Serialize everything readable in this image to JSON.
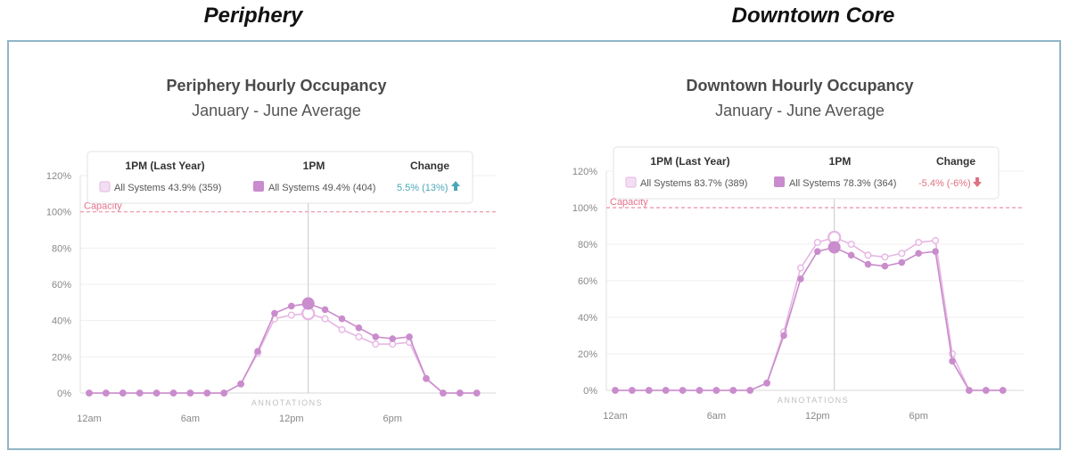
{
  "headings": {
    "left": "Periphery",
    "right": "Downtown Core"
  },
  "chart_data": [
    {
      "type": "line",
      "title": "Periphery Hourly Occupancy",
      "subtitle": "January - June Average",
      "ylim": [
        0,
        120
      ],
      "yticks": [
        "0%",
        "20%",
        "40%",
        "60%",
        "80%",
        "100%",
        "120%"
      ],
      "xticks": [
        "12am",
        "6am",
        "12pm",
        "6pm"
      ],
      "capacity_label": "Capacity",
      "capacity_value": 100,
      "annotations_label": "ANNOTATIONS",
      "tooltip": {
        "headers": [
          "1PM (Last Year)",
          "1PM",
          "Change"
        ],
        "last_year": {
          "label": "All Systems",
          "pct": "43.9%",
          "count": "(359)"
        },
        "current": {
          "label": "All Systems",
          "pct": "49.4%",
          "count": "(404)"
        },
        "change": "5.5% (13%)",
        "change_color": "#4aa8b8",
        "change_dir": "up"
      },
      "highlight_hour": 13,
      "series": [
        {
          "name": "All Systems",
          "style": "filled",
          "color": "#c98ccc",
          "values": [
            0,
            0,
            0,
            0,
            0,
            0,
            0,
            0,
            0,
            5,
            23,
            44,
            48,
            49.4,
            46,
            41,
            36,
            31,
            30,
            31,
            8,
            0,
            0,
            0
          ]
        },
        {
          "name": "All Systems (Last Year)",
          "style": "hollow",
          "color": "#e7b6e4",
          "values": [
            0,
            0,
            0,
            0,
            0,
            0,
            0,
            0,
            0,
            5,
            22,
            41,
            43,
            43.9,
            41,
            35,
            31,
            27,
            27,
            28,
            8,
            0,
            0,
            0
          ]
        }
      ]
    },
    {
      "type": "line",
      "title": "Downtown Hourly Occupancy",
      "subtitle": "January - June Average",
      "ylim": [
        0,
        120
      ],
      "yticks": [
        "0%",
        "20%",
        "40%",
        "60%",
        "80%",
        "100%",
        "120%"
      ],
      "xticks": [
        "12am",
        "6am",
        "12pm",
        "6pm"
      ],
      "capacity_label": "Capacity",
      "capacity_value": 100,
      "annotations_label": "ANNOTATIONS",
      "tooltip": {
        "headers": [
          "1PM (Last Year)",
          "1PM",
          "Change"
        ],
        "last_year": {
          "label": "All Systems",
          "pct": "83.7%",
          "count": "(389)"
        },
        "current": {
          "label": "All Systems",
          "pct": "78.3%",
          "count": "(364)"
        },
        "change": "-5.4% (-6%)",
        "change_color": "#e07080",
        "change_dir": "down"
      },
      "highlight_hour": 13,
      "series": [
        {
          "name": "All Systems",
          "style": "filled",
          "color": "#c98ccc",
          "values": [
            0,
            0,
            0,
            0,
            0,
            0,
            0,
            0,
            0,
            4,
            30,
            61,
            76,
            78.3,
            74,
            69,
            68,
            70,
            75,
            76,
            16,
            0,
            0,
            0
          ]
        },
        {
          "name": "All Systems (Last Year)",
          "style": "hollow",
          "color": "#e7b6e4",
          "values": [
            0,
            0,
            0,
            0,
            0,
            0,
            0,
            0,
            0,
            4,
            32,
            67,
            81,
            83.7,
            80,
            74,
            73,
            75,
            81,
            82,
            20,
            0,
            0,
            0
          ]
        }
      ]
    }
  ]
}
